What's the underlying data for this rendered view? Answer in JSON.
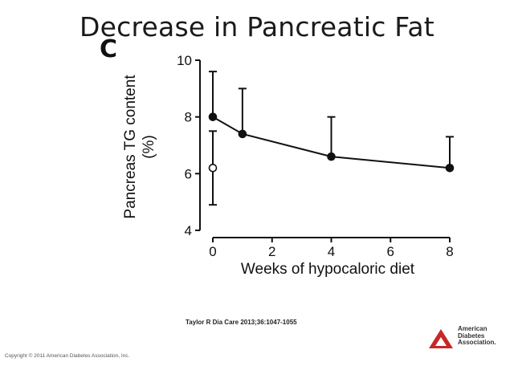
{
  "slide": {
    "title": "Decrease in Pancreatic Fat",
    "panel_letter": "C",
    "citation": "Taylor R Dia Care 2013;36:1047-1055",
    "copyright": "Copyright © 2011 American Diabetes Association, Inc."
  },
  "logo": {
    "line1": "American",
    "line2": "Diabetes",
    "line3": "Association.",
    "color": "#c62828"
  },
  "chart_data": {
    "type": "line",
    "title": "",
    "xlabel": "Weeks of hypocaloric diet",
    "ylabel_line1": "Pancreas TG content",
    "ylabel_line2": "(%)",
    "xlim": [
      0,
      8
    ],
    "ylim": [
      4,
      10
    ],
    "xticks": [
      0,
      2,
      4,
      6,
      8
    ],
    "yticks": [
      4,
      6,
      8,
      10
    ],
    "grid": false,
    "series": [
      {
        "marker": "filled-circle",
        "connected": true,
        "x": [
          0,
          1,
          4,
          8
        ],
        "y": [
          8.0,
          7.4,
          6.6,
          6.2
        ],
        "err_upper": [
          9.6,
          9.0,
          8.0,
          7.3
        ]
      },
      {
        "marker": "open-circle",
        "connected": false,
        "x": [
          0
        ],
        "y": [
          6.2
        ],
        "err_upper": [
          7.5
        ],
        "err_lower": [
          4.9
        ]
      }
    ]
  }
}
